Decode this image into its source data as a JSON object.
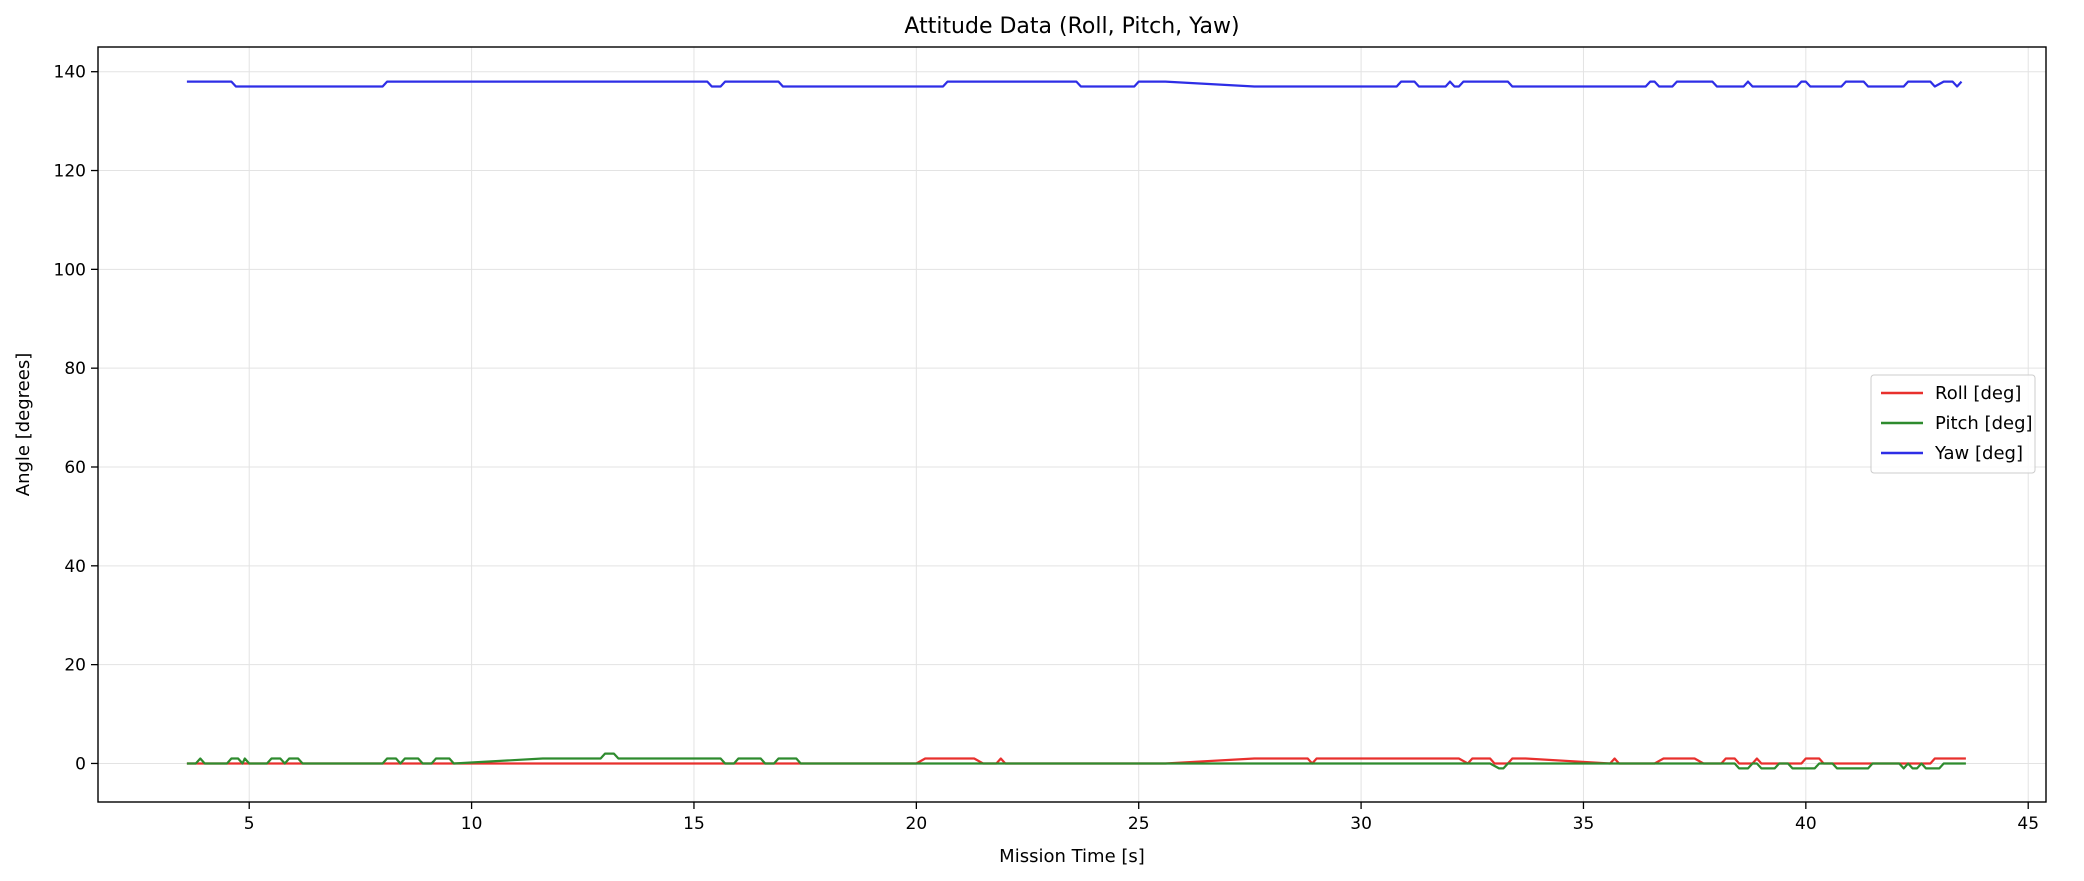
{
  "chart_data": {
    "type": "line",
    "title": "Attitude Data (Roll, Pitch, Yaw)",
    "xlabel": "Mission Time [s]",
    "ylabel": "Angle [degrees]",
    "xlim": [
      1.6,
      45.4
    ],
    "ylim": [
      -7.8,
      145.0
    ],
    "xticks": [
      5,
      10,
      15,
      20,
      25,
      30,
      35,
      40,
      45
    ],
    "yticks": [
      0,
      20,
      40,
      60,
      80,
      100,
      120,
      140
    ],
    "grid": true,
    "legend_position": "center-right",
    "series": [
      {
        "name": "Roll [deg]",
        "color": "#e8302d",
        "points": [
          [
            3.6,
            0
          ],
          [
            20.0,
            0
          ],
          [
            20.2,
            1
          ],
          [
            21.3,
            1
          ],
          [
            21.5,
            0
          ],
          [
            21.8,
            0
          ],
          [
            21.9,
            1
          ],
          [
            22.0,
            0
          ],
          [
            25.6,
            0
          ],
          [
            27.6,
            1
          ],
          [
            28.8,
            1
          ],
          [
            28.9,
            0
          ],
          [
            29.0,
            1
          ],
          [
            32.2,
            1
          ],
          [
            32.4,
            0
          ],
          [
            32.5,
            1
          ],
          [
            32.9,
            1
          ],
          [
            33.0,
            0
          ],
          [
            33.3,
            0
          ],
          [
            33.4,
            1
          ],
          [
            33.7,
            1
          ],
          [
            35.6,
            0
          ],
          [
            35.7,
            1
          ],
          [
            35.8,
            0
          ],
          [
            36.6,
            0
          ],
          [
            36.8,
            1
          ],
          [
            37.5,
            1
          ],
          [
            37.7,
            0
          ],
          [
            38.1,
            0
          ],
          [
            38.2,
            1
          ],
          [
            38.4,
            1
          ],
          [
            38.5,
            0
          ],
          [
            38.8,
            0
          ],
          [
            38.9,
            1
          ],
          [
            39.0,
            0
          ],
          [
            39.9,
            0
          ],
          [
            40.0,
            1
          ],
          [
            40.3,
            1
          ],
          [
            40.4,
            0
          ],
          [
            42.8,
            0
          ],
          [
            42.9,
            1
          ],
          [
            43.6,
            1
          ]
        ]
      },
      {
        "name": "Pitch [deg]",
        "color": "#2e8b2e",
        "points": [
          [
            3.6,
            0
          ],
          [
            3.8,
            0
          ],
          [
            3.9,
            1
          ],
          [
            4.0,
            0
          ],
          [
            4.5,
            0
          ],
          [
            4.6,
            1
          ],
          [
            4.75,
            1
          ],
          [
            4.85,
            0
          ],
          [
            4.9,
            1
          ],
          [
            5.0,
            0
          ],
          [
            5.4,
            0
          ],
          [
            5.5,
            1
          ],
          [
            5.7,
            1
          ],
          [
            5.8,
            0
          ],
          [
            5.9,
            1
          ],
          [
            6.1,
            1
          ],
          [
            6.2,
            0
          ],
          [
            8.0,
            0
          ],
          [
            8.1,
            1
          ],
          [
            8.3,
            1
          ],
          [
            8.4,
            0
          ],
          [
            8.5,
            1
          ],
          [
            8.8,
            1
          ],
          [
            8.9,
            0
          ],
          [
            9.1,
            0
          ],
          [
            9.2,
            1
          ],
          [
            9.5,
            1
          ],
          [
            9.6,
            0
          ],
          [
            11.6,
            1
          ],
          [
            12.9,
            1
          ],
          [
            13.0,
            2
          ],
          [
            13.2,
            2
          ],
          [
            13.3,
            1
          ],
          [
            15.6,
            1
          ],
          [
            15.7,
            0
          ],
          [
            15.9,
            0
          ],
          [
            16.0,
            1
          ],
          [
            16.5,
            1
          ],
          [
            16.6,
            0
          ],
          [
            16.8,
            0
          ],
          [
            16.9,
            1
          ],
          [
            17.3,
            1
          ],
          [
            17.4,
            0
          ],
          [
            32.9,
            0
          ],
          [
            33.1,
            -1
          ],
          [
            33.2,
            -1
          ],
          [
            33.3,
            0
          ],
          [
            38.4,
            0
          ],
          [
            38.5,
            -1
          ],
          [
            38.7,
            -1
          ],
          [
            38.8,
            0
          ],
          [
            38.9,
            0
          ],
          [
            39.0,
            -1
          ],
          [
            39.3,
            -1
          ],
          [
            39.4,
            0
          ],
          [
            39.6,
            0
          ],
          [
            39.7,
            -1
          ],
          [
            40.2,
            -1
          ],
          [
            40.3,
            0
          ],
          [
            40.6,
            0
          ],
          [
            40.7,
            -1
          ],
          [
            41.4,
            -1
          ],
          [
            41.5,
            0
          ],
          [
            42.1,
            0
          ],
          [
            42.2,
            -1
          ],
          [
            42.3,
            0
          ],
          [
            42.4,
            -1
          ],
          [
            42.5,
            -1
          ],
          [
            42.6,
            0
          ],
          [
            42.7,
            -1
          ],
          [
            43.0,
            -1
          ],
          [
            43.1,
            0
          ],
          [
            43.6,
            0
          ]
        ]
      },
      {
        "name": "Yaw [deg]",
        "color": "#2e2ee6",
        "points": [
          [
            3.6,
            138
          ],
          [
            4.6,
            138
          ],
          [
            4.7,
            137
          ],
          [
            8.0,
            137
          ],
          [
            8.1,
            138
          ],
          [
            15.3,
            138
          ],
          [
            15.4,
            137
          ],
          [
            15.6,
            137
          ],
          [
            15.7,
            138
          ],
          [
            16.9,
            138
          ],
          [
            17.0,
            137
          ],
          [
            20.6,
            137
          ],
          [
            20.7,
            138
          ],
          [
            23.6,
            138
          ],
          [
            23.7,
            137
          ],
          [
            24.9,
            137
          ],
          [
            25.0,
            138
          ],
          [
            25.6,
            138
          ],
          [
            27.6,
            137
          ],
          [
            30.8,
            137
          ],
          [
            30.9,
            138
          ],
          [
            31.2,
            138
          ],
          [
            31.3,
            137
          ],
          [
            31.9,
            137
          ],
          [
            32.0,
            138
          ],
          [
            32.1,
            137
          ],
          [
            32.2,
            137
          ],
          [
            32.3,
            138
          ],
          [
            33.3,
            138
          ],
          [
            33.4,
            137
          ],
          [
            36.4,
            137
          ],
          [
            36.5,
            138
          ],
          [
            36.6,
            138
          ],
          [
            36.7,
            137
          ],
          [
            37.0,
            137
          ],
          [
            37.1,
            138
          ],
          [
            37.9,
            138
          ],
          [
            38.0,
            137
          ],
          [
            38.6,
            137
          ],
          [
            38.7,
            138
          ],
          [
            38.8,
            137
          ],
          [
            39.8,
            137
          ],
          [
            39.9,
            138
          ],
          [
            40.0,
            138
          ],
          [
            40.1,
            137
          ],
          [
            40.8,
            137
          ],
          [
            40.9,
            138
          ],
          [
            41.3,
            138
          ],
          [
            41.4,
            137
          ],
          [
            42.2,
            137
          ],
          [
            42.3,
            138
          ],
          [
            42.8,
            138
          ],
          [
            42.9,
            137
          ],
          [
            43.1,
            138
          ],
          [
            43.3,
            138
          ],
          [
            43.4,
            137
          ],
          [
            43.5,
            138
          ]
        ]
      }
    ]
  }
}
